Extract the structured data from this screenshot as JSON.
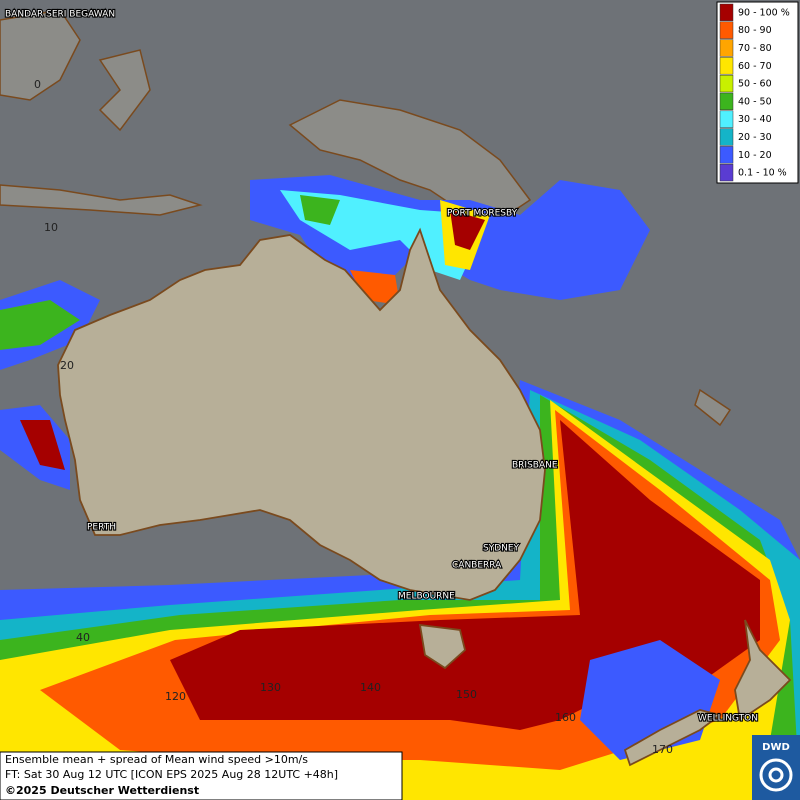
{
  "legend": [
    {
      "label": "90 - 100 %",
      "color": "#a50000"
    },
    {
      "label": "80 - 90",
      "color": "#ff5a00"
    },
    {
      "label": "70 - 80",
      "color": "#ffa500"
    },
    {
      "label": "60 - 70",
      "color": "#ffe600"
    },
    {
      "label": "50 - 60",
      "color": "#c8f000"
    },
    {
      "label": "40 - 50",
      "color": "#3cb41e"
    },
    {
      "label": "30 - 40",
      "color": "#50f0ff"
    },
    {
      "label": "20 - 30",
      "color": "#14b4c8"
    },
    {
      "label": "10 - 20",
      "color": "#3c5aff"
    },
    {
      "label": "0.1 - 10 %",
      "color": "#5a3cd2"
    }
  ],
  "cities": [
    "BANDAR SERI BEGAWAN",
    "PORT MORESBY",
    "BRISBANE",
    "PERTH",
    "SYDNEY",
    "CANBERRA",
    "MELBOURNE",
    "WELLINGTON"
  ],
  "latitude_labels": [
    "0",
    "10",
    "20",
    "40"
  ],
  "longitude_labels": [
    "120",
    "130",
    "140",
    "150",
    "160",
    "170"
  ],
  "caption": {
    "line1": "Ensemble mean + spread of Mean wind speed >10m/s",
    "line2": "FT: Sat 30 Aug 12 UTC [ICON EPS 2025 Aug 28 12UTC +48h]",
    "line3": "©2025 Deutscher Wetterdienst"
  },
  "logo": "DWD"
}
